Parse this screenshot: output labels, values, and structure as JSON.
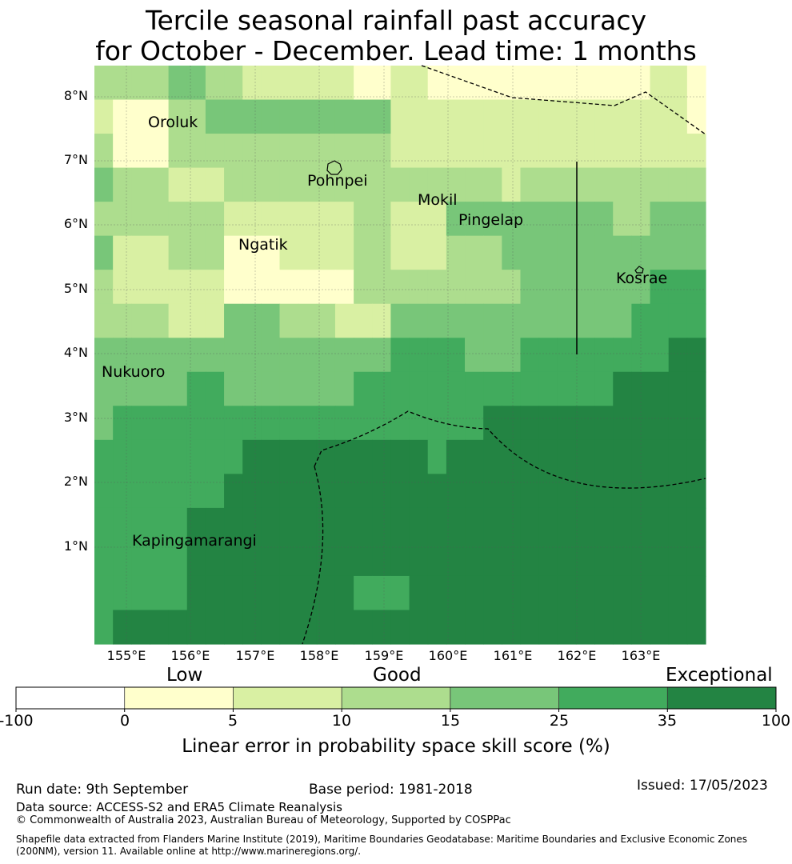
{
  "title": {
    "line1": "Tercile seasonal rainfall past accuracy",
    "line2": "for October - December. Lead time: 1 months"
  },
  "map": {
    "lat_labels": [
      "8°N",
      "7°N",
      "6°N",
      "5°N",
      "4°N",
      "3°N",
      "2°N",
      "1°N"
    ],
    "lon_labels": [
      "155°E",
      "156°E",
      "157°E",
      "158°E",
      "159°E",
      "160°E",
      "161°E",
      "162°E",
      "163°E"
    ],
    "places": [
      "Oroluk",
      "Pohnpei",
      "Mokil",
      "Pingelap",
      "Ngatik",
      "Kosrae",
      "Nukuoro",
      "Kapingamarangi"
    ],
    "legend_colors": [
      "#ffffff",
      "#ffffcc",
      "#d9f0a3",
      "#addd8e",
      "#78c679",
      "#41ab5d",
      "#238443"
    ],
    "grid_levels": [
      [
        3,
        3,
        3,
        3,
        4,
        4,
        3,
        3,
        2,
        2,
        2,
        2,
        2,
        2,
        1,
        1,
        2,
        2,
        1,
        1,
        1,
        1,
        1,
        1,
        1,
        1,
        1,
        1,
        1,
        1,
        2,
        2,
        1
      ],
      [
        2,
        1,
        1,
        1,
        3,
        3,
        4,
        4,
        4,
        4,
        4,
        4,
        4,
        4,
        4,
        4,
        2,
        2,
        2,
        2,
        2,
        2,
        2,
        2,
        2,
        2,
        2,
        2,
        2,
        2,
        2,
        2,
        1
      ],
      [
        3,
        1,
        1,
        1,
        3,
        3,
        3,
        3,
        3,
        3,
        3,
        3,
        3,
        3,
        3,
        3,
        2,
        2,
        2,
        2,
        2,
        2,
        2,
        2,
        2,
        2,
        2,
        2,
        2,
        2,
        2,
        2,
        2
      ],
      [
        4,
        3,
        3,
        3,
        2,
        2,
        2,
        3,
        3,
        3,
        3,
        3,
        3,
        3,
        3,
        3,
        3,
        3,
        3,
        3,
        3,
        3,
        2,
        3,
        3,
        3,
        3,
        3,
        3,
        3,
        3,
        3,
        3
      ],
      [
        3,
        3,
        3,
        3,
        3,
        3,
        3,
        2,
        2,
        2,
        2,
        2,
        2,
        2,
        3,
        3,
        2,
        2,
        2,
        4,
        4,
        4,
        4,
        4,
        4,
        4,
        4,
        4,
        3,
        3,
        4,
        4,
        4
      ],
      [
        4,
        2,
        2,
        2,
        3,
        3,
        3,
        1,
        1,
        1,
        2,
        2,
        2,
        2,
        3,
        3,
        2,
        2,
        2,
        3,
        3,
        3,
        4,
        4,
        4,
        4,
        4,
        4,
        4,
        4,
        4,
        4,
        4
      ],
      [
        3,
        2,
        2,
        2,
        2,
        2,
        2,
        1,
        1,
        1,
        1,
        1,
        1,
        1,
        3,
        3,
        3,
        3,
        3,
        3,
        3,
        3,
        3,
        4,
        4,
        4,
        4,
        4,
        4,
        4,
        5,
        5,
        5
      ],
      [
        3,
        3,
        3,
        3,
        2,
        2,
        2,
        4,
        4,
        4,
        3,
        3,
        3,
        2,
        2,
        2,
        4,
        4,
        4,
        4,
        4,
        4,
        4,
        4,
        4,
        4,
        4,
        4,
        4,
        5,
        5,
        5,
        5
      ],
      [
        4,
        4,
        4,
        4,
        4,
        4,
        4,
        4,
        4,
        4,
        4,
        4,
        4,
        4,
        4,
        4,
        5,
        5,
        5,
        5,
        4,
        4,
        4,
        5,
        5,
        5,
        5,
        5,
        5,
        5,
        5,
        6,
        6
      ],
      [
        4,
        4,
        4,
        4,
        4,
        5,
        5,
        4,
        4,
        4,
        4,
        4,
        4,
        4,
        5,
        5,
        5,
        5,
        5,
        5,
        5,
        5,
        5,
        5,
        5,
        5,
        5,
        5,
        6,
        6,
        6,
        6,
        6
      ],
      [
        4,
        5,
        5,
        5,
        5,
        5,
        5,
        5,
        5,
        5,
        5,
        5,
        5,
        5,
        5,
        5,
        5,
        5,
        5,
        5,
        5,
        6,
        6,
        6,
        6,
        6,
        6,
        6,
        6,
        6,
        6,
        6,
        6
      ],
      [
        5,
        5,
        5,
        5,
        5,
        5,
        5,
        5,
        6,
        6,
        6,
        6,
        6,
        6,
        6,
        6,
        6,
        6,
        5,
        6,
        6,
        6,
        6,
        6,
        6,
        6,
        6,
        6,
        6,
        6,
        6,
        6,
        6
      ],
      [
        5,
        5,
        5,
        5,
        5,
        5,
        5,
        6,
        6,
        6,
        6,
        6,
        6,
        6,
        6,
        6,
        6,
        6,
        6,
        6,
        6,
        6,
        6,
        6,
        6,
        6,
        6,
        6,
        6,
        6,
        6,
        6,
        6
      ],
      [
        5,
        5,
        5,
        5,
        5,
        6,
        6,
        6,
        6,
        6,
        6,
        6,
        6,
        6,
        6,
        6,
        6,
        6,
        6,
        6,
        6,
        6,
        6,
        6,
        6,
        6,
        6,
        6,
        6,
        6,
        6,
        6,
        6
      ],
      [
        5,
        5,
        5,
        5,
        5,
        6,
        6,
        6,
        6,
        6,
        6,
        6,
        6,
        6,
        6,
        6,
        6,
        6,
        6,
        6,
        6,
        6,
        6,
        6,
        6,
        6,
        6,
        6,
        6,
        6,
        6,
        6,
        6
      ],
      [
        5,
        5,
        5,
        5,
        5,
        6,
        6,
        6,
        6,
        6,
        6,
        6,
        6,
        6,
        5,
        5,
        5,
        6,
        6,
        6,
        6,
        6,
        6,
        6,
        6,
        6,
        6,
        6,
        6,
        6,
        6,
        6,
        6
      ],
      [
        5,
        6,
        6,
        6,
        6,
        6,
        6,
        6,
        6,
        6,
        6,
        6,
        6,
        6,
        6,
        6,
        6,
        6,
        6,
        6,
        6,
        6,
        6,
        6,
        6,
        6,
        6,
        6,
        6,
        6,
        6,
        6,
        6
      ]
    ]
  },
  "legend": {
    "categories": [
      "Low",
      "Good",
      "Exceptional"
    ],
    "ticks": [
      "-100",
      "0",
      "5",
      "10",
      "15",
      "25",
      "35",
      "100"
    ],
    "label": "Linear error in probability space skill score (%)"
  },
  "footer": {
    "run_date": "Run date: 9th September",
    "base_period": "Base period: 1981-2018",
    "issued": "Issued: 17/05/2023",
    "data_source": "Data source: ACCESS-S2 and ERA5 Climate Reanalysis",
    "copyright": "© Commonwealth of Australia 2023, Australian Bureau of Meteorology, Supported by COSPPac",
    "shapefile_line1": "Shapefile data extracted from Flanders Marine Institute (2019), Maritime Boundaries Geodatabase: Maritime Boundaries and Exclusive Economic Zones",
    "shapefile_line2": "(200NM), version 11. Available online at http://www.marineregions.org/."
  }
}
